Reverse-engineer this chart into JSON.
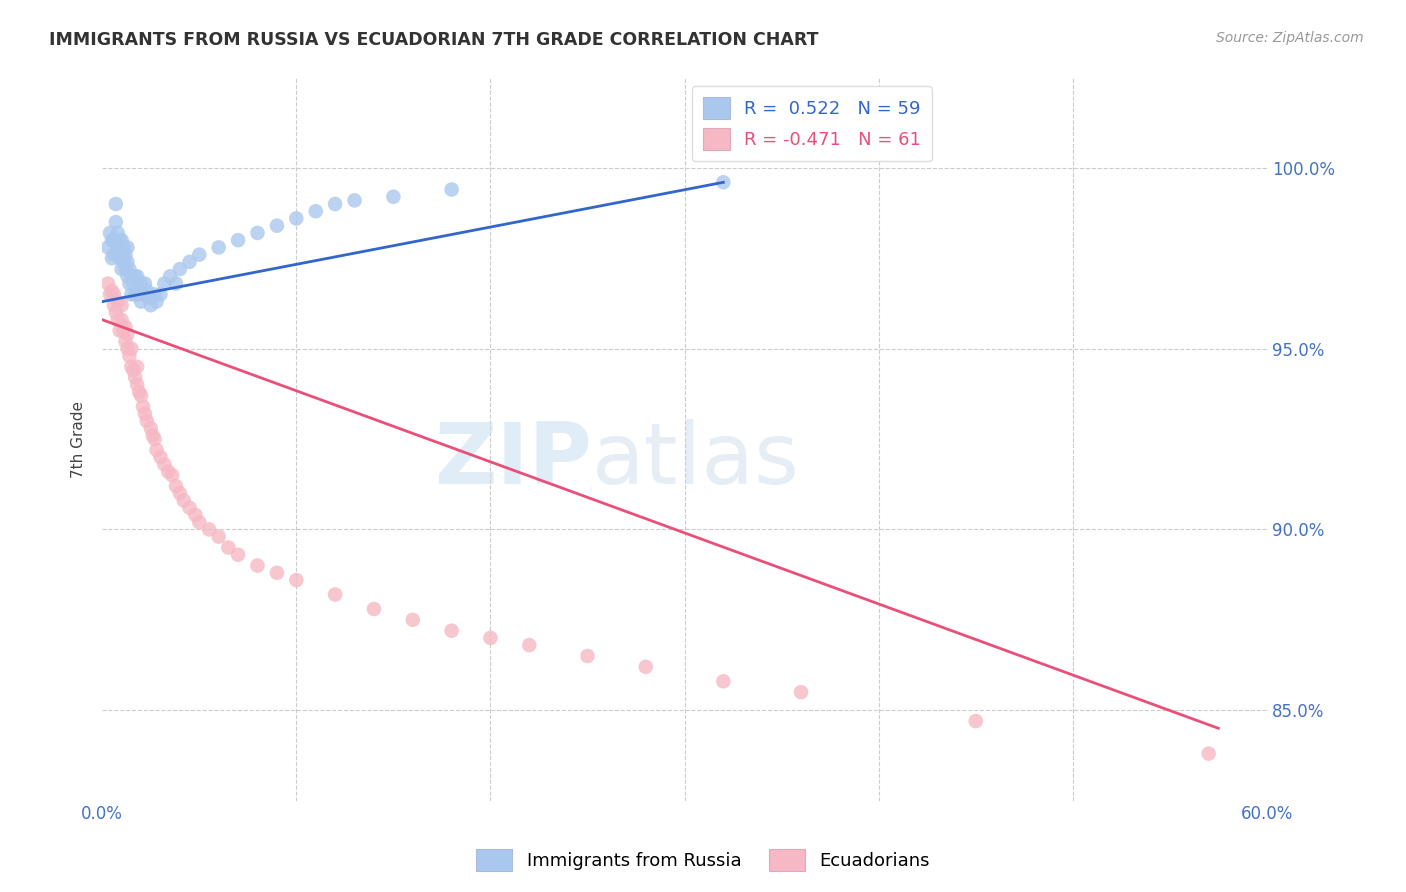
{
  "title": "IMMIGRANTS FROM RUSSIA VS ECUADORIAN 7TH GRADE CORRELATION CHART",
  "source": "Source: ZipAtlas.com",
  "ylabel": "7th Grade",
  "x_ticks_pct": [
    0.0,
    0.1,
    0.2,
    0.3,
    0.4,
    0.5,
    0.6
  ],
  "y_ticks_pct": [
    0.85,
    0.9,
    0.95,
    1.0
  ],
  "y_tick_labels": [
    "85.0%",
    "90.0%",
    "95.0%",
    "100.0%"
  ],
  "xlim": [
    0.0,
    0.6
  ],
  "ylim": [
    0.825,
    1.025
  ],
  "blue_color": "#aac8ee",
  "pink_color": "#f5b8c4",
  "blue_line_color": "#3366cc",
  "pink_line_color": "#e8507a",
  "blue_scatter_x": [
    0.003,
    0.004,
    0.005,
    0.005,
    0.006,
    0.006,
    0.007,
    0.007,
    0.008,
    0.008,
    0.009,
    0.009,
    0.01,
    0.01,
    0.01,
    0.011,
    0.011,
    0.012,
    0.012,
    0.013,
    0.013,
    0.013,
    0.014,
    0.014,
    0.015,
    0.015,
    0.016,
    0.017,
    0.017,
    0.018,
    0.018,
    0.019,
    0.02,
    0.02,
    0.021,
    0.022,
    0.023,
    0.024,
    0.025,
    0.027,
    0.028,
    0.03,
    0.032,
    0.035,
    0.038,
    0.04,
    0.045,
    0.05,
    0.06,
    0.07,
    0.08,
    0.09,
    0.1,
    0.11,
    0.12,
    0.13,
    0.15,
    0.18,
    0.32
  ],
  "blue_scatter_y": [
    0.978,
    0.982,
    0.975,
    0.98,
    0.976,
    0.98,
    0.985,
    0.99,
    0.978,
    0.982,
    0.975,
    0.98,
    0.972,
    0.976,
    0.98,
    0.974,
    0.978,
    0.972,
    0.976,
    0.97,
    0.974,
    0.978,
    0.968,
    0.972,
    0.965,
    0.97,
    0.968,
    0.965,
    0.97,
    0.965,
    0.97,
    0.966,
    0.963,
    0.968,
    0.965,
    0.968,
    0.966,
    0.964,
    0.962,
    0.965,
    0.963,
    0.965,
    0.968,
    0.97,
    0.968,
    0.972,
    0.974,
    0.976,
    0.978,
    0.98,
    0.982,
    0.984,
    0.986,
    0.988,
    0.99,
    0.991,
    0.992,
    0.994,
    0.996
  ],
  "pink_scatter_x": [
    0.003,
    0.004,
    0.005,
    0.006,
    0.006,
    0.007,
    0.008,
    0.008,
    0.009,
    0.01,
    0.01,
    0.011,
    0.012,
    0.012,
    0.013,
    0.013,
    0.014,
    0.015,
    0.015,
    0.016,
    0.017,
    0.018,
    0.018,
    0.019,
    0.02,
    0.021,
    0.022,
    0.023,
    0.025,
    0.026,
    0.027,
    0.028,
    0.03,
    0.032,
    0.034,
    0.036,
    0.038,
    0.04,
    0.042,
    0.045,
    0.048,
    0.05,
    0.055,
    0.06,
    0.065,
    0.07,
    0.08,
    0.09,
    0.1,
    0.12,
    0.14,
    0.16,
    0.18,
    0.2,
    0.22,
    0.25,
    0.28,
    0.32,
    0.36,
    0.45,
    0.57
  ],
  "pink_scatter_y": [
    0.968,
    0.965,
    0.966,
    0.962,
    0.965,
    0.96,
    0.963,
    0.958,
    0.955,
    0.958,
    0.962,
    0.955,
    0.952,
    0.956,
    0.95,
    0.954,
    0.948,
    0.945,
    0.95,
    0.944,
    0.942,
    0.94,
    0.945,
    0.938,
    0.937,
    0.934,
    0.932,
    0.93,
    0.928,
    0.926,
    0.925,
    0.922,
    0.92,
    0.918,
    0.916,
    0.915,
    0.912,
    0.91,
    0.908,
    0.906,
    0.904,
    0.902,
    0.9,
    0.898,
    0.895,
    0.893,
    0.89,
    0.888,
    0.886,
    0.882,
    0.878,
    0.875,
    0.872,
    0.87,
    0.868,
    0.865,
    0.862,
    0.858,
    0.855,
    0.847,
    0.838
  ],
  "blue_line_x": [
    0.0,
    0.32
  ],
  "blue_line_y": [
    0.963,
    0.996
  ],
  "pink_line_x": [
    0.0,
    0.575
  ],
  "pink_line_y": [
    0.958,
    0.845
  ],
  "watermark_zip": "ZIP",
  "watermark_atlas": "atlas",
  "background_color": "#ffffff",
  "grid_color": "#cccccc",
  "tick_color": "#4472c4",
  "legend_line1": "R =  0.522   N = 59",
  "legend_line2": "R = -0.471   N = 61",
  "bottom_legend_blue": "Immigrants from Russia",
  "bottom_legend_pink": "Ecuadorians"
}
